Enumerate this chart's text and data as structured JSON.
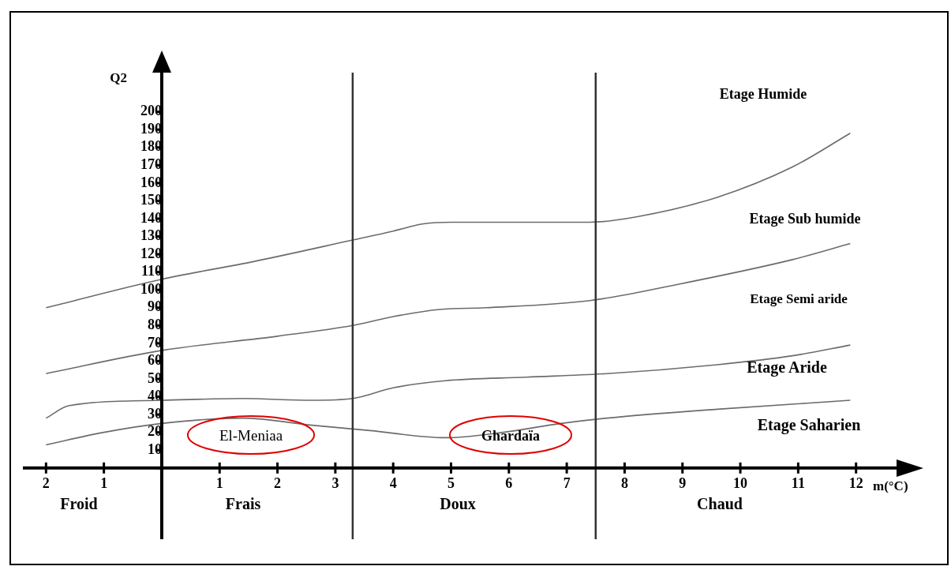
{
  "chart_data": {
    "type": "line",
    "xlabel": "m(°C)",
    "ylabel": "Q2",
    "xlim": [
      -2.4,
      12.7
    ],
    "ylim": [
      -40,
      222
    ],
    "xticks": [
      {
        "value": -2,
        "label": "2"
      },
      {
        "value": -1,
        "label": "1"
      },
      {
        "value": 0,
        "label": null
      },
      1,
      2,
      3,
      4,
      5,
      6,
      7,
      8,
      9,
      10,
      11,
      12
    ],
    "yticks": [
      {
        "value": 0,
        "label": null
      },
      10,
      20,
      30,
      40,
      50,
      60,
      70,
      80,
      90,
      100,
      110,
      120,
      130,
      140,
      150,
      160,
      170,
      180,
      190,
      200
    ],
    "series": [
      {
        "color": "#6b6b6b",
        "x": [
          -2,
          0,
          1.6,
          3.3,
          4,
          4.5,
          5,
          6.3,
          7.4,
          8.2,
          9.6,
          10.9,
          11.9
        ],
        "values": [
          90,
          106,
          116,
          128,
          133,
          137,
          138,
          138,
          138,
          141,
          152,
          169,
          188
        ]
      },
      {
        "color": "#6b6b6b",
        "x": [
          -2,
          0,
          2,
          3.3,
          4,
          4.8,
          5.6,
          7.4,
          8.9,
          10.9,
          11.9
        ],
        "values": [
          53,
          66,
          74,
          80,
          85,
          89,
          90,
          94,
          103,
          117,
          126
        ]
      },
      {
        "color": "#6b6b6b",
        "x": [
          -2,
          -1.6,
          0,
          1.4,
          2.6,
          3.3,
          4,
          4.9,
          6.3,
          7.7,
          9.6,
          10.9,
          11.9
        ],
        "values": [
          28,
          35,
          38,
          39,
          38,
          39,
          45,
          49,
          51,
          53,
          58,
          63,
          69
        ]
      },
      {
        "color": "#6b6b6b",
        "x": [
          -2,
          -1,
          0,
          1.4,
          2.6,
          3.6,
          4.9,
          5.9,
          6.9,
          7.7,
          9.6,
          11.9
        ],
        "values": [
          13,
          20,
          25,
          28,
          24,
          21,
          17,
          20,
          25,
          28,
          33,
          38
        ]
      }
    ],
    "ref_lines": [
      {
        "axis": "x",
        "value": 3.3,
        "color": "#333333"
      },
      {
        "axis": "x",
        "value": 7.5,
        "color": "#333333"
      }
    ],
    "annotations": [
      "Etage Humide",
      "Etage Sub humide",
      "Etage Semi aride",
      "Etage Aride",
      "Etage Saharien",
      "El-Meniaa",
      "Ghardaïa",
      "Froid",
      "Frais",
      "Doux",
      "Chaud"
    ],
    "grid": false,
    "legend": false,
    "marker": "none",
    "line_style": "solid"
  }
}
